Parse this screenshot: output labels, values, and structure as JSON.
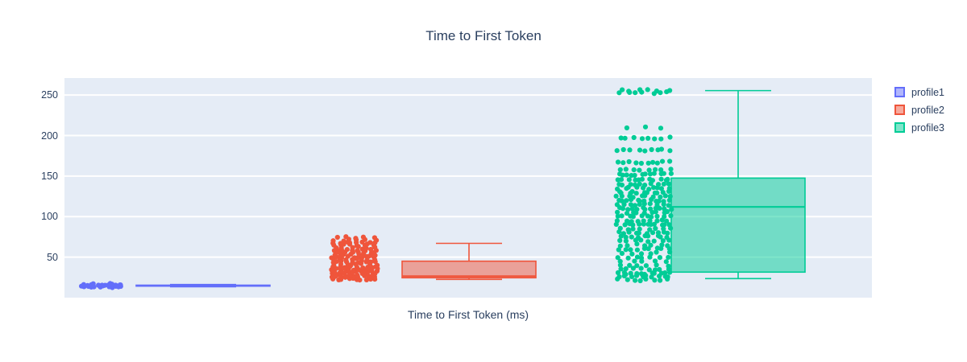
{
  "title": "Time to First Token",
  "x_axis": {
    "label": "Time to First Token (ms)"
  },
  "y_axis": {
    "ticks": [
      50,
      100,
      150,
      200,
      250
    ],
    "range": [
      0,
      271
    ]
  },
  "legend": {
    "items": [
      {
        "label": "profile1",
        "color": "#636EFA"
      },
      {
        "label": "profile2",
        "color": "#EF553B"
      },
      {
        "label": "profile3",
        "color": "#00CC96"
      }
    ]
  },
  "colors": {
    "text": "#2a3f5f",
    "plot_bg": "#e5ecf6",
    "grid": "#ffffff",
    "paper": "#ffffff"
  },
  "chart_data": {
    "type": "box",
    "orientation": "vertical",
    "show_points": "all",
    "title": "Time to First Token",
    "xlabel": "Time to First Token (ms)",
    "ylabel": "",
    "ylim": [
      0,
      271
    ],
    "grid": true,
    "legend_position": "right",
    "series": [
      {
        "name": "profile1",
        "color": "#636EFA",
        "box": {
          "min": 13.5,
          "q1": 14.2,
          "median": 14.8,
          "q3": 15.4,
          "max": 16.2
        },
        "points_value_count": [
          [
            13.4,
            7
          ],
          [
            14.2,
            9
          ],
          [
            14.9,
            8
          ],
          [
            15.6,
            5
          ],
          [
            16.2,
            2
          ]
        ]
      },
      {
        "name": "profile2",
        "color": "#EF553B",
        "box": {
          "min": 22.5,
          "q1": 24.5,
          "median": 26.5,
          "q3": 45,
          "max": 67
        },
        "points_value_count": [
          [
            23,
            10
          ],
          [
            26,
            14
          ],
          [
            29,
            12
          ],
          [
            32,
            14
          ],
          [
            35,
            12
          ],
          [
            38,
            10
          ],
          [
            41,
            8
          ],
          [
            44,
            10
          ],
          [
            47,
            8
          ],
          [
            50,
            10
          ],
          [
            53,
            8
          ],
          [
            56,
            8
          ],
          [
            59,
            10
          ],
          [
            62,
            6
          ],
          [
            65,
            8
          ],
          [
            68,
            8
          ],
          [
            71,
            6
          ],
          [
            74,
            5
          ]
        ]
      },
      {
        "name": "profile3",
        "color": "#00CC96",
        "box": {
          "min": 23.5,
          "q1": 31.5,
          "median": 112,
          "q3": 147.5,
          "max": 255.5
        },
        "points_value_count": [
          [
            22,
            8
          ],
          [
            26,
            10
          ],
          [
            30,
            12
          ],
          [
            35,
            8
          ],
          [
            40,
            6
          ],
          [
            45,
            5
          ],
          [
            50,
            7
          ],
          [
            55,
            6
          ],
          [
            60,
            9
          ],
          [
            65,
            7
          ],
          [
            70,
            8
          ],
          [
            75,
            9
          ],
          [
            80,
            10
          ],
          [
            85,
            8
          ],
          [
            90,
            12
          ],
          [
            95,
            9
          ],
          [
            100,
            10
          ],
          [
            105,
            9
          ],
          [
            110,
            12
          ],
          [
            115,
            10
          ],
          [
            120,
            12
          ],
          [
            125,
            10
          ],
          [
            130,
            11
          ],
          [
            135,
            10
          ],
          [
            140,
            10
          ],
          [
            146,
            11
          ],
          [
            152,
            12
          ],
          [
            158,
            8
          ],
          [
            167,
            10
          ],
          [
            182,
            9
          ],
          [
            197,
            8
          ],
          [
            210,
            3
          ],
          [
            253,
            7
          ],
          [
            256,
            6
          ]
        ]
      }
    ]
  }
}
